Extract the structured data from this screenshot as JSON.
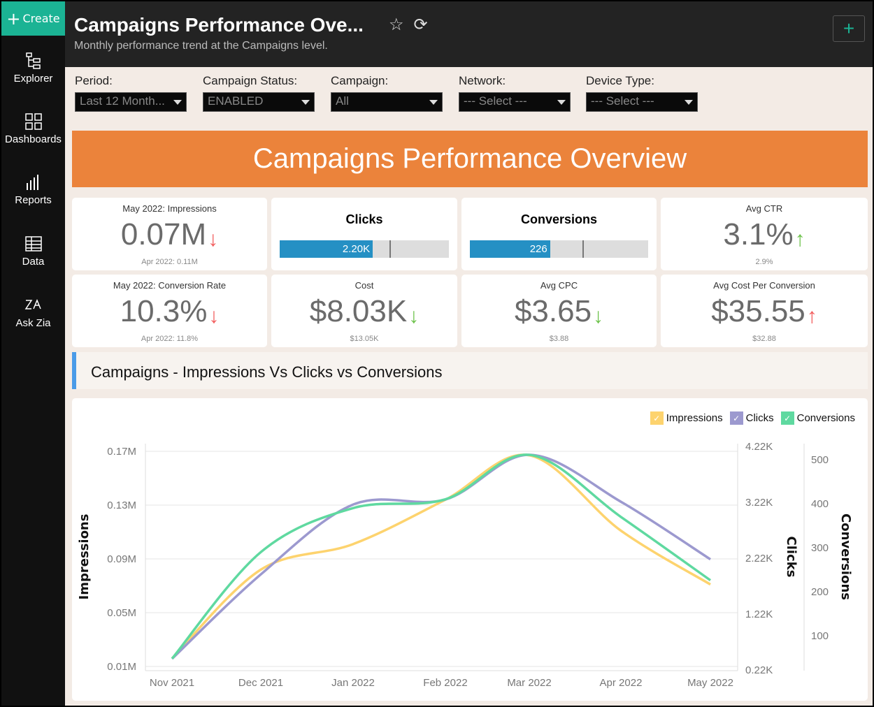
{
  "sidebar": {
    "create_label": "Create",
    "items": [
      {
        "label": "Explorer",
        "icon": "explorer-icon"
      },
      {
        "label": "Dashboards",
        "icon": "dashboards-icon"
      },
      {
        "label": "Reports",
        "icon": "reports-icon"
      },
      {
        "label": "Data",
        "icon": "data-table-icon"
      },
      {
        "label": "Ask Zia",
        "icon": "zia-icon"
      }
    ]
  },
  "header": {
    "title": "Campaigns Performance Ove...",
    "subtitle": "Monthly performance trend at the Campaigns level."
  },
  "filters": [
    {
      "label": "Period:",
      "value": "Last 12 Month..."
    },
    {
      "label": "Campaign Status:",
      "value": "ENABLED"
    },
    {
      "label": "Campaign:",
      "value": "All"
    },
    {
      "label": "Network:",
      "value": "--- Select ---"
    },
    {
      "label": "Device Type:",
      "value": "--- Select ---"
    }
  ],
  "banner": "Campaigns Performance Overview",
  "kpis": {
    "impressions": {
      "title": "May 2022: Impressions",
      "value": "0.07M",
      "trend": "down",
      "sub": "Apr 2022: 0.11M"
    },
    "clicks": {
      "title": "Clicks",
      "value": "2.20K",
      "fill_pct": 55,
      "target_pct": 65
    },
    "conversions": {
      "title": "Conversions",
      "value": "226",
      "fill_pct": 45,
      "target_pct": 63
    },
    "ctr": {
      "title": "Avg CTR",
      "value": "3.1%",
      "trend": "up",
      "sub": "2.9%"
    },
    "conv_rate": {
      "title": "May 2022: Conversion Rate",
      "value": "10.3%",
      "trend": "down",
      "sub": "Apr 2022: 11.8%"
    },
    "cost": {
      "title": "Cost",
      "value": "$8.03K",
      "trend": "down",
      "sub": "$13.05K"
    },
    "cpc": {
      "title": "Avg CPC",
      "value": "$3.65",
      "trend": "down",
      "sub": "$3.88"
    },
    "cpconv": {
      "title": "Avg Cost Per Conversion",
      "value": "$35.55",
      "trend": "up",
      "sub": "$32.88"
    }
  },
  "colors": {
    "accent": "#1bb394",
    "banner": "#eb833b",
    "bar": "#2590c4",
    "trend_bad": "#f25c5c",
    "trend_good": "#6cc24a",
    "impressions": "#fdd36e",
    "clicks": "#9c99cf",
    "conversions": "#5fd9a0"
  },
  "section_title": "Campaigns - Impressions Vs Clicks vs Conversions",
  "chart_data": {
    "type": "line",
    "categories": [
      "Nov 2021",
      "Dec 2021",
      "Jan 2022",
      "Feb 2022",
      "Mar 2022",
      "Apr 2022",
      "May 2022"
    ],
    "series": [
      {
        "name": "Impressions",
        "axis": "left",
        "values": [
          0.016,
          0.082,
          0.101,
          0.134,
          0.167,
          0.111,
          0.071
        ]
      },
      {
        "name": "Clicks",
        "axis": "right1",
        "values": [
          0.42,
          1.93,
          3.18,
          3.27,
          4.07,
          3.23,
          2.2
        ]
      },
      {
        "name": "Conversions",
        "axis": "right2",
        "values": [
          48,
          290,
          390,
          410,
          511,
          370,
          226
        ]
      }
    ],
    "axes": {
      "left": {
        "label": "Impressions",
        "ticks": [
          "0.01M",
          "0.05M",
          "0.09M",
          "0.13M",
          "0.17M"
        ],
        "range": [
          0.01,
          0.17
        ]
      },
      "right1": {
        "label": "Clicks",
        "ticks": [
          "0.22K",
          "1.22K",
          "2.22K",
          "3.22K",
          "4.22K"
        ],
        "range": [
          0.22,
          4.22
        ]
      },
      "right2": {
        "label": "Conversions",
        "ticks": [
          "100",
          "200",
          "300",
          "400",
          "500"
        ]
      }
    },
    "legend": "top-right",
    "grid": true
  }
}
